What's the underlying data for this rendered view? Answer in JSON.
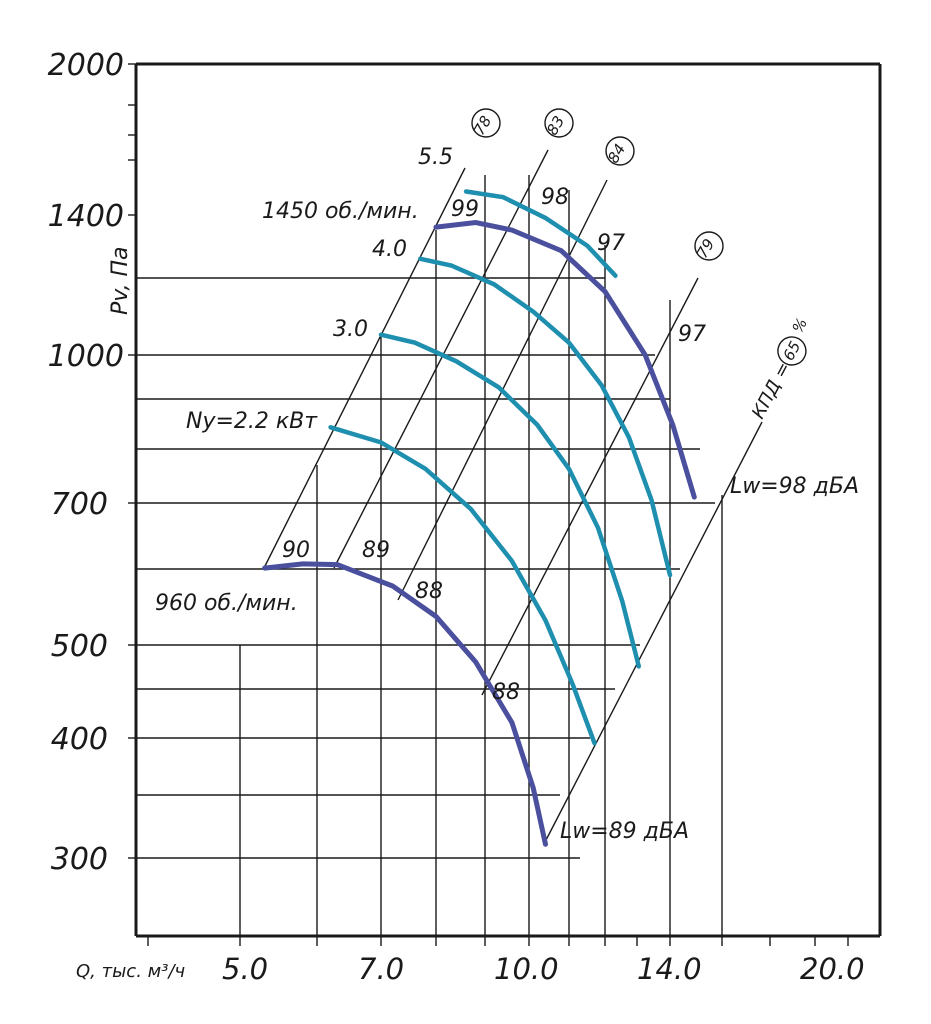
{
  "chart_data": {
    "type": "line",
    "x_axis_label": "Q, тыс. м³/ч",
    "y_axis_label": "Pv, Па",
    "x_ticks": [
      "5.0",
      "7.0",
      "10.0",
      "14.0",
      "20.0"
    ],
    "y_ticks": [
      "300",
      "400",
      "500",
      "700",
      "1000",
      "1400",
      "2000"
    ],
    "speed_labels": [
      "1450 об./мин.",
      "960 об./мин."
    ],
    "power_labels": [
      "Ny=2.2 кВт",
      "3.0",
      "4.0",
      "5.5"
    ],
    "efficiency_label": "КПД",
    "efficiency_eq": "=",
    "efficiency_unit": "%",
    "efficiency_circles": [
      "78",
      "83",
      "84",
      "79",
      "65"
    ],
    "noise_labels": [
      "Lw=98 дБА",
      "Lw=89 дБА"
    ],
    "noise_values": [
      "99",
      "98",
      "97",
      "97",
      "90",
      "89",
      "88",
      "88"
    ],
    "series": [
      {
        "name": "1450 об./мин.",
        "color": "#4a4f9e",
        "points": [
          [
            8.0,
            1360
          ],
          [
            8.8,
            1375
          ],
          [
            9.6,
            1350
          ],
          [
            10.8,
            1285
          ],
          [
            12.0,
            1165
          ],
          [
            13.2,
            1000
          ],
          [
            14.1,
            845
          ],
          [
            14.9,
            710
          ]
        ]
      },
      {
        "name": "960 об./мин.",
        "color": "#4a4f9e",
        "points": [
          [
            5.3,
            600
          ],
          [
            5.8,
            606
          ],
          [
            6.3,
            605
          ],
          [
            7.2,
            575
          ],
          [
            8.0,
            535
          ],
          [
            8.8,
            480
          ],
          [
            9.6,
            415
          ],
          [
            10.1,
            355
          ],
          [
            10.4,
            310
          ]
        ]
      },
      {
        "name": "5.5",
        "color": "#1f8fb0",
        "points": [
          [
            8.6,
            1480
          ],
          [
            9.4,
            1460
          ],
          [
            10.4,
            1390
          ],
          [
            11.5,
            1300
          ],
          [
            12.3,
            1210
          ]
        ]
      },
      {
        "name": "4.0",
        "color": "#1f8fb0",
        "points": [
          [
            7.7,
            1260
          ],
          [
            8.3,
            1240
          ],
          [
            9.2,
            1185
          ],
          [
            10.1,
            1110
          ],
          [
            11.0,
            1030
          ],
          [
            11.9,
            930
          ],
          [
            12.7,
            820
          ],
          [
            13.4,
            705
          ],
          [
            14.0,
            590
          ]
        ]
      },
      {
        "name": "3.0",
        "color": "#1f8fb0",
        "points": [
          [
            7.0,
            1050
          ],
          [
            7.6,
            1030
          ],
          [
            8.4,
            985
          ],
          [
            9.3,
            925
          ],
          [
            10.2,
            845
          ],
          [
            11.0,
            760
          ],
          [
            11.8,
            660
          ],
          [
            12.5,
            555
          ],
          [
            13.0,
            475
          ]
        ]
      },
      {
        "name": "Ny=2.2 кВт",
        "color": "#1f8fb0",
        "points": [
          [
            6.2,
            840
          ],
          [
            7.0,
            810
          ],
          [
            7.8,
            760
          ],
          [
            8.7,
            690
          ],
          [
            9.6,
            610
          ],
          [
            10.4,
            530
          ],
          [
            11.1,
            455
          ],
          [
            11.7,
            395
          ]
        ]
      }
    ]
  }
}
